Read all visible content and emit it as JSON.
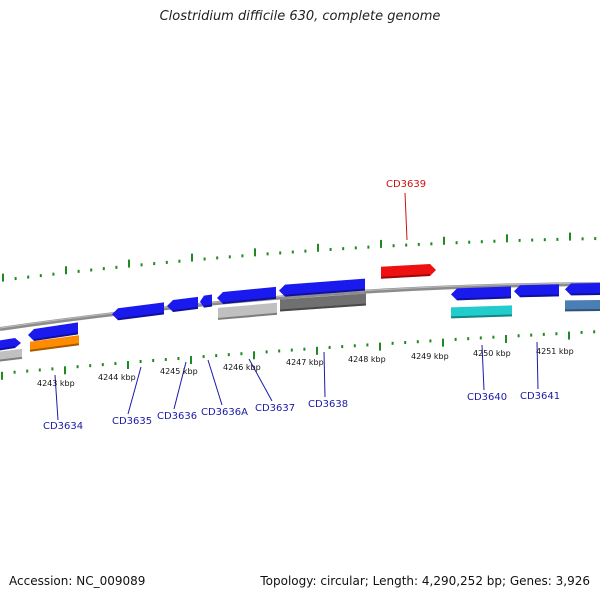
{
  "title": "Clostridium difficile 630, complete genome",
  "accession_label": "Accession: NC_009089",
  "topology_label": "Topology: circular; Length: 4,290,252 bp; Genes: 3,926",
  "colors": {
    "backbone": "#8c8c8c",
    "tick": "#1f8a1f",
    "gene_blue": "#1a1aee",
    "gene_red": "#ee1111",
    "gene_orange": "#ff8c00",
    "gene_cyan": "#22cccc",
    "gene_steel": "#4a7fb5",
    "gene_lightgray": "#c0c0c0",
    "gene_darkgray": "#707070",
    "label_blue": "#1a1aa8",
    "label_red": "#cc1111"
  },
  "scale_labels": [
    "4243 kbp",
    "4244 kbp",
    "4245 kbp",
    "4246 kbp",
    "4247 kbp",
    "4248 kbp",
    "4249 kbp",
    "4250 kbp",
    "4251 kbp"
  ],
  "gene_labels": [
    "CD3634",
    "CD3635",
    "CD3636",
    "CD3636A",
    "CD3637",
    "CD3638",
    "CD3639",
    "CD3640",
    "CD3641"
  ]
}
